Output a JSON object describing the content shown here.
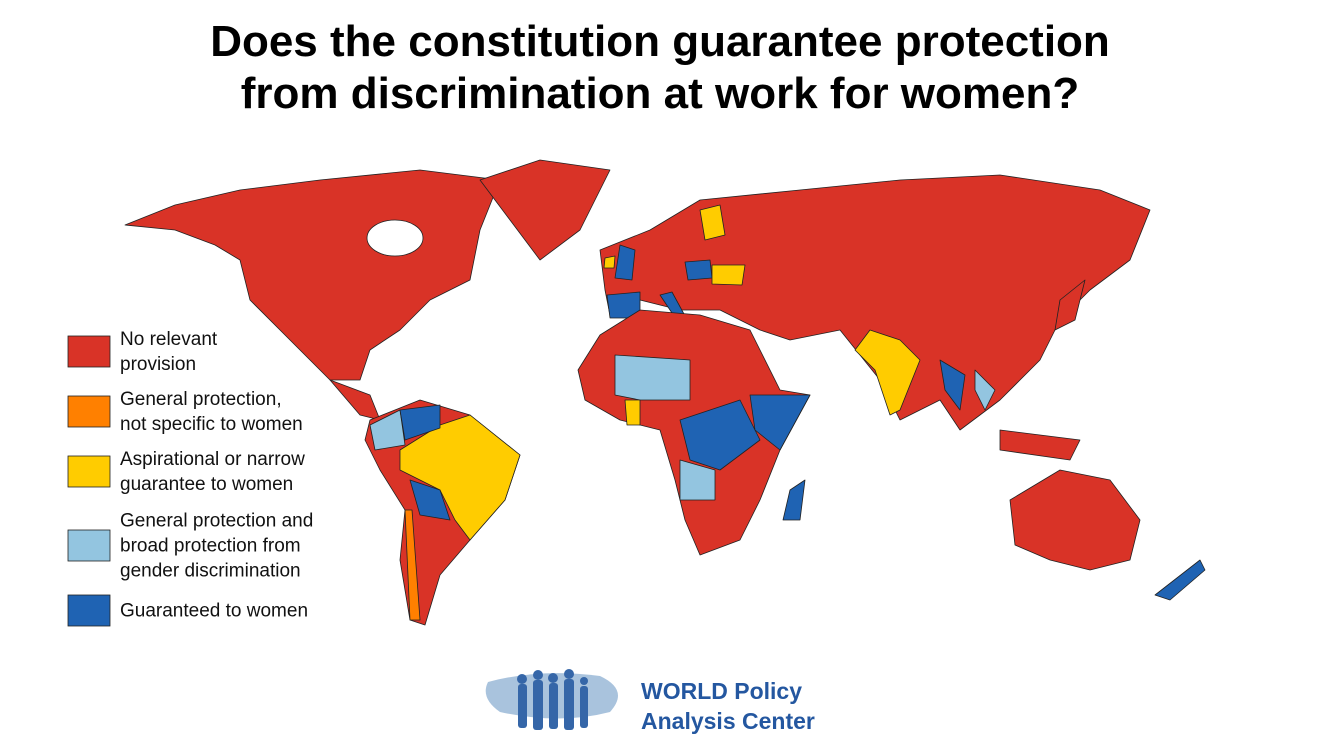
{
  "title": [
    "Does the constitution guarantee protection",
    "from discrimination at work for women?"
  ],
  "legend": {
    "items": [
      {
        "label": [
          "No relevant",
          "provision"
        ],
        "color": "#d93327"
      },
      {
        "label": [
          "General protection,",
          "not specific to women"
        ],
        "color": "#ff8000"
      },
      {
        "label": [
          "Aspirational or narrow",
          "guarantee to women"
        ],
        "color": "#ffcc00"
      },
      {
        "label": [
          "General protection and",
          "broad protection from",
          "gender discrimination"
        ],
        "color": "#93c5e0"
      },
      {
        "label": [
          "Guaranteed to women"
        ],
        "color": "#1f63b3"
      }
    ]
  },
  "logo": {
    "text": [
      "WORLD Policy",
      "Analysis Center"
    ]
  }
}
